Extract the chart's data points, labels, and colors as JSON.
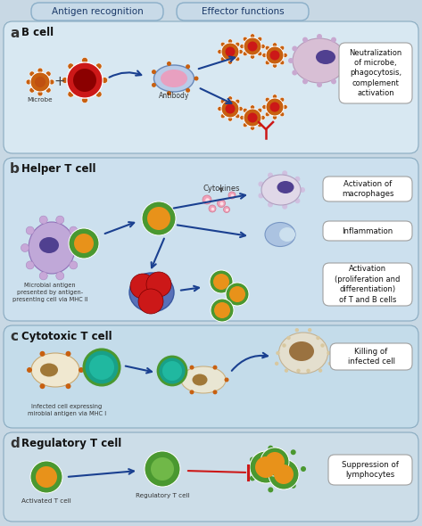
{
  "bg_color": "#dce8f0",
  "outer_bg": "#c8d8e4",
  "section_a_bg": "#d8e8f2",
  "section_b_bg": "#cce0ee",
  "section_c_bg": "#c4dcea",
  "section_d_bg": "#ccdde8",
  "header_bg": "#c8dae8",
  "header_border": "#8aaec8",
  "section_border": "#88aac0",
  "box_border": "#aaaaaa",
  "header_texts": [
    "Antigen recognition",
    "Effector functions"
  ],
  "section_labels": [
    "a",
    "b",
    "c",
    "d"
  ],
  "section_titles": [
    "B cell",
    "Helper T cell",
    "Cytotoxic T cell",
    "Regulatory T cell"
  ],
  "effector_texts": [
    "Neutralization\nof microbe,\nphagocytosis,\ncomplement\nactivation",
    "Activation of\nmacrophages",
    "Inflammation",
    "Activation\n(proliferation and\ndifferentiation)\nof T and B cells",
    "Killing of\ninfected cell",
    "Suppression of\nlymphocytes"
  ],
  "colors": {
    "orange": "#e8921a",
    "dark_orange": "#c86010",
    "red": "#cc1818",
    "dark_red": "#8b0000",
    "green": "#4a9830",
    "dark_green": "#2a6010",
    "teal": "#18a088",
    "blue": "#2858a8",
    "light_blue": "#80b0d8",
    "purple": "#7858a8",
    "light_purple": "#c0a8d8",
    "pink": "#e898b8",
    "beige": "#e8d8b0",
    "tan": "#c8a870",
    "brown": "#a07838",
    "dark_brown": "#7a5828",
    "gray": "#909090",
    "light_gray": "#d0d0d0",
    "navy": "#1a3888",
    "dark_purple": "#504090",
    "mauve": "#d8b8d0",
    "lavender": "#c0a8d8",
    "cream": "#f0e8d0",
    "pale_purple": "#b8a0d0",
    "mid_blue": "#6888b8"
  }
}
